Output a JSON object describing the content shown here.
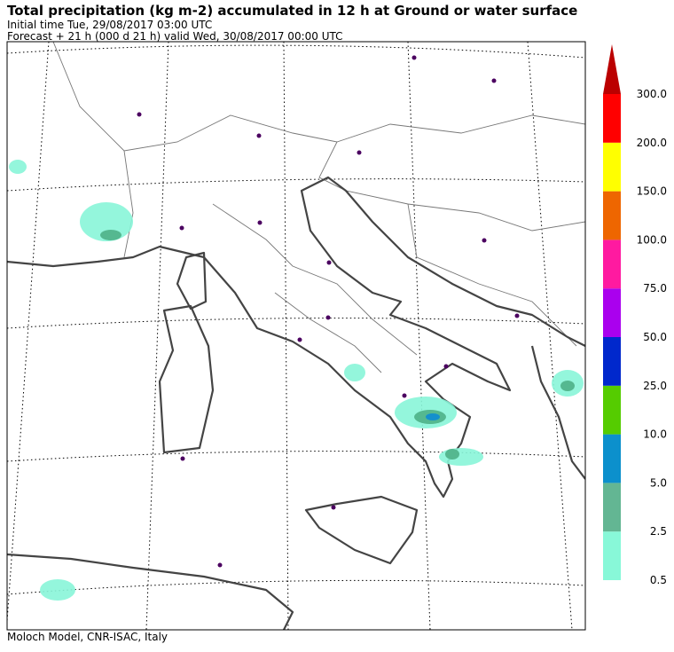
{
  "header": {
    "title": "Total precipitation (kg m-2) accumulated in  12 h at Ground or water surface",
    "initial_time": "Initial time  Tue, 29/08/2017  03:00 UTC",
    "forecast": "Forecast  +  21 h  (000 d 21 h)  valid Wed, 30/08/2017 00:00 UTC"
  },
  "footer": "Moloch Model, CNR-ISAC, Italy",
  "colorbar": {
    "ticks": [
      0.5,
      2.5,
      {
        "value": 5,
        "label": "5.0"
      },
      {
        "value": 10,
        "label": "10.0"
      },
      {
        "value": 25,
        "label": "25.0"
      },
      {
        "value": 50,
        "label": "50.0"
      },
      {
        "value": 75,
        "label": "75.0"
      },
      {
        "value": 100,
        "label": "100.0"
      },
      {
        "value": 150,
        "label": "150.0"
      },
      {
        "value": 200,
        "label": "200.0"
      },
      {
        "value": 300,
        "label": "300.0"
      }
    ],
    "colors": [
      "#88f8d8",
      "#63b693",
      "#0c90cc",
      "#55cc00",
      "#0028cc",
      "#aa00ee",
      "#ff1aa0",
      "#ee6600",
      "#ffff00",
      "#ff0000"
    ],
    "extend_color": "#bb0000"
  }
}
